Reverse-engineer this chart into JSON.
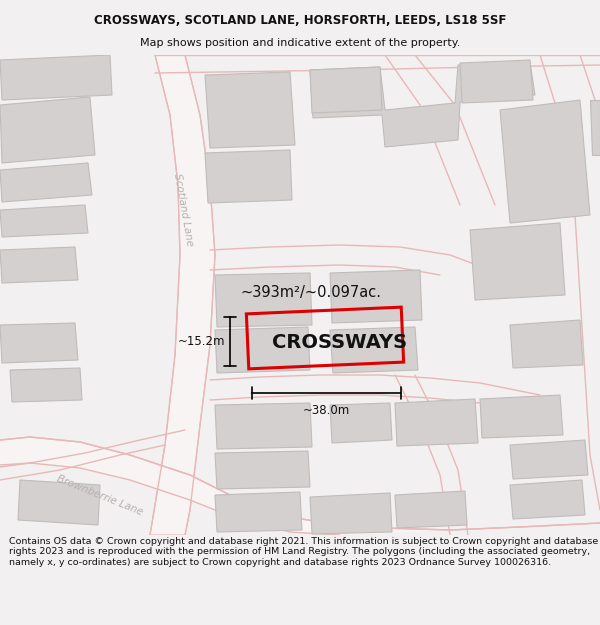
{
  "title": "CROSSWAYS, SCOTLAND LANE, HORSFORTH, LEEDS, LS18 5SF",
  "subtitle": "Map shows position and indicative extent of the property.",
  "footer": "Contains OS data © Crown copyright and database right 2021. This information is subject to Crown copyright and database rights 2023 and is reproduced with the permission of HM Land Registry. The polygons (including the associated geometry, namely x, y co-ordinates) are subject to Crown copyright and database rights 2023 Ordnance Survey 100026316.",
  "bg_color": "#f2f0f0",
  "map_bg": "#ffffff",
  "road_fill": "#f5eded",
  "road_edge": "#e8b8b8",
  "building_fill": "#d4d0d0",
  "building_edge": "#c0bcbc",
  "street_color": "#b8b0b0",
  "property_edge": "#dd0000",
  "property_fill": "none",
  "dim_color": "#000000",
  "area_text": "~393m²/~0.097ac.",
  "name_text": "CROSSWAYS",
  "dim_width": "~38.0m",
  "dim_height": "~15.2m",
  "title_fontsize": 8.5,
  "subtitle_fontsize": 8,
  "footer_fontsize": 6.8,
  "name_fontsize": 14,
  "area_fontsize": 10.5,
  "dim_fontsize": 8.5,
  "street_fontsize": 7.5
}
